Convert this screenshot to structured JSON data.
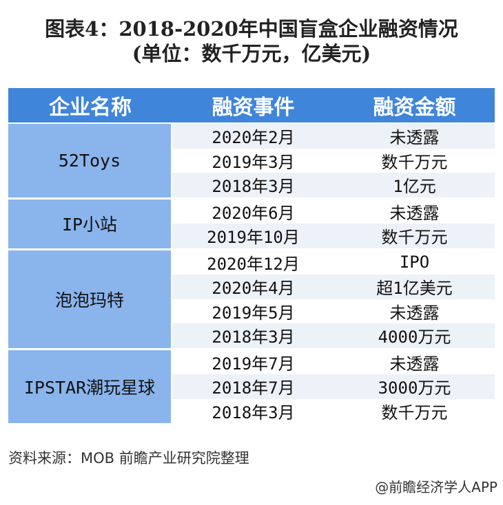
{
  "title_line1": "图表4：2018-2020年中国盲盒企业融资情况",
  "title_line2": "(单位：数千万元，亿美元)",
  "headers": [
    "企业名称",
    "融资事件",
    "融资金额"
  ],
  "groups": [
    {
      "name": "52Toys",
      "rows": [
        [
          "2020年2月",
          "未透露"
        ],
        [
          "2019年3月",
          "数千万元"
        ],
        [
          "2018年3月",
          "1亿元"
        ]
      ]
    },
    {
      "name": "IP小站",
      "rows": [
        [
          "2020年6月",
          "未透露"
        ],
        [
          "2019年10月",
          "数千万元"
        ]
      ]
    },
    {
      "name": "泡泡玛特",
      "rows": [
        [
          "2020年12月",
          "IPO"
        ],
        [
          "2020年4月",
          "超1亿美元"
        ],
        [
          "2019年5月",
          "未透露"
        ],
        [
          "2018年3月",
          "4000万元"
        ]
      ]
    },
    {
      "name": "IPSTAR潮玩星球",
      "rows": [
        [
          "2019年7月",
          "未透露"
        ],
        [
          "2018年7月",
          "3000万元"
        ],
        [
          "2018年3月",
          "数千万元"
        ]
      ]
    }
  ],
  "source": "资料来源：MOB 前瞻产业研究院整理",
  "credit": "@前瞻经济学人APP",
  "colors": {
    "header": "#3f85da",
    "name_cell": "#8ab4ec",
    "stripe": "#edf1f8"
  }
}
